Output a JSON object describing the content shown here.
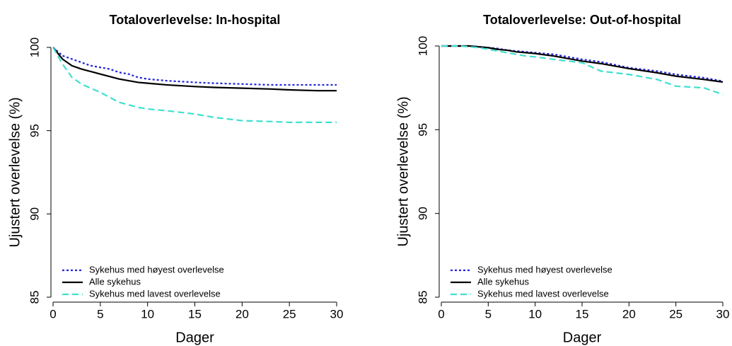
{
  "chart_data": [
    {
      "type": "line",
      "title": "Totaloverlevelse: In-hospital",
      "xlabel": "Dager",
      "ylabel": "Ujustert overlevelse (%)",
      "x": [
        0,
        1,
        2,
        3,
        4,
        5,
        6,
        7,
        8,
        9,
        10,
        12,
        15,
        17,
        20,
        23,
        25,
        28,
        30
      ],
      "xlim": [
        0,
        30
      ],
      "xticks": [
        0,
        5,
        10,
        15,
        20,
        25,
        30
      ],
      "ylim": [
        85,
        100
      ],
      "yticks": [
        85,
        90,
        95,
        100
      ],
      "legend": "lower left",
      "series": [
        {
          "name": "Sykehus med høyest overlevelse",
          "color": "#2222dd",
          "style": "dotted",
          "values": [
            100,
            99.5,
            99.3,
            99.1,
            98.9,
            98.8,
            98.7,
            98.5,
            98.4,
            98.2,
            98.1,
            98.0,
            97.9,
            97.85,
            97.8,
            97.75,
            97.75,
            97.75,
            97.75
          ]
        },
        {
          "name": "Alle sykehus",
          "color": "#000000",
          "style": "solid",
          "values": [
            100,
            99.3,
            98.9,
            98.7,
            98.55,
            98.4,
            98.25,
            98.1,
            98.0,
            97.9,
            97.85,
            97.75,
            97.65,
            97.6,
            97.55,
            97.5,
            97.45,
            97.4,
            97.4
          ]
        },
        {
          "name": "Sykehus med lavest overlevelse",
          "color": "#40e0d0",
          "style": "dashed",
          "values": [
            100,
            99.0,
            98.2,
            97.8,
            97.55,
            97.3,
            97.0,
            96.7,
            96.55,
            96.4,
            96.3,
            96.2,
            96.0,
            95.8,
            95.6,
            95.55,
            95.5,
            95.5,
            95.5
          ]
        }
      ]
    },
    {
      "type": "line",
      "title": "Totaloverlevelse: Out-of-hospital",
      "xlabel": "Dager",
      "ylabel": "Ujustert overlevelse (%)",
      "x": [
        0,
        1,
        2,
        3,
        4,
        5,
        6,
        7,
        8,
        9,
        10,
        12,
        15,
        17,
        20,
        23,
        25,
        28,
        30
      ],
      "xlim": [
        0,
        30
      ],
      "xticks": [
        0,
        5,
        10,
        15,
        20,
        25,
        30
      ],
      "ylim": [
        85,
        100
      ],
      "yticks": [
        85,
        90,
        95,
        100
      ],
      "legend": "lower left",
      "series": [
        {
          "name": "Sykehus med høyest overlevelse",
          "color": "#2222dd",
          "style": "dotted",
          "values": [
            100,
            100,
            100,
            100,
            99.95,
            99.9,
            99.85,
            99.75,
            99.7,
            99.65,
            99.6,
            99.5,
            99.2,
            99.05,
            98.7,
            98.5,
            98.3,
            98.1,
            97.9
          ]
        },
        {
          "name": "Alle sykehus",
          "color": "#000000",
          "style": "solid",
          "values": [
            100,
            100,
            100,
            100,
            99.95,
            99.9,
            99.8,
            99.75,
            99.65,
            99.6,
            99.55,
            99.4,
            99.1,
            98.95,
            98.65,
            98.4,
            98.2,
            98.0,
            97.85
          ]
        },
        {
          "name": "Sykehus med lavest overlevelse",
          "color": "#40e0d0",
          "style": "dashed",
          "values": [
            100,
            100,
            100,
            99.95,
            99.9,
            99.8,
            99.7,
            99.6,
            99.5,
            99.4,
            99.35,
            99.2,
            99.0,
            98.5,
            98.3,
            98.0,
            97.6,
            97.5,
            97.1
          ]
        }
      ]
    }
  ]
}
